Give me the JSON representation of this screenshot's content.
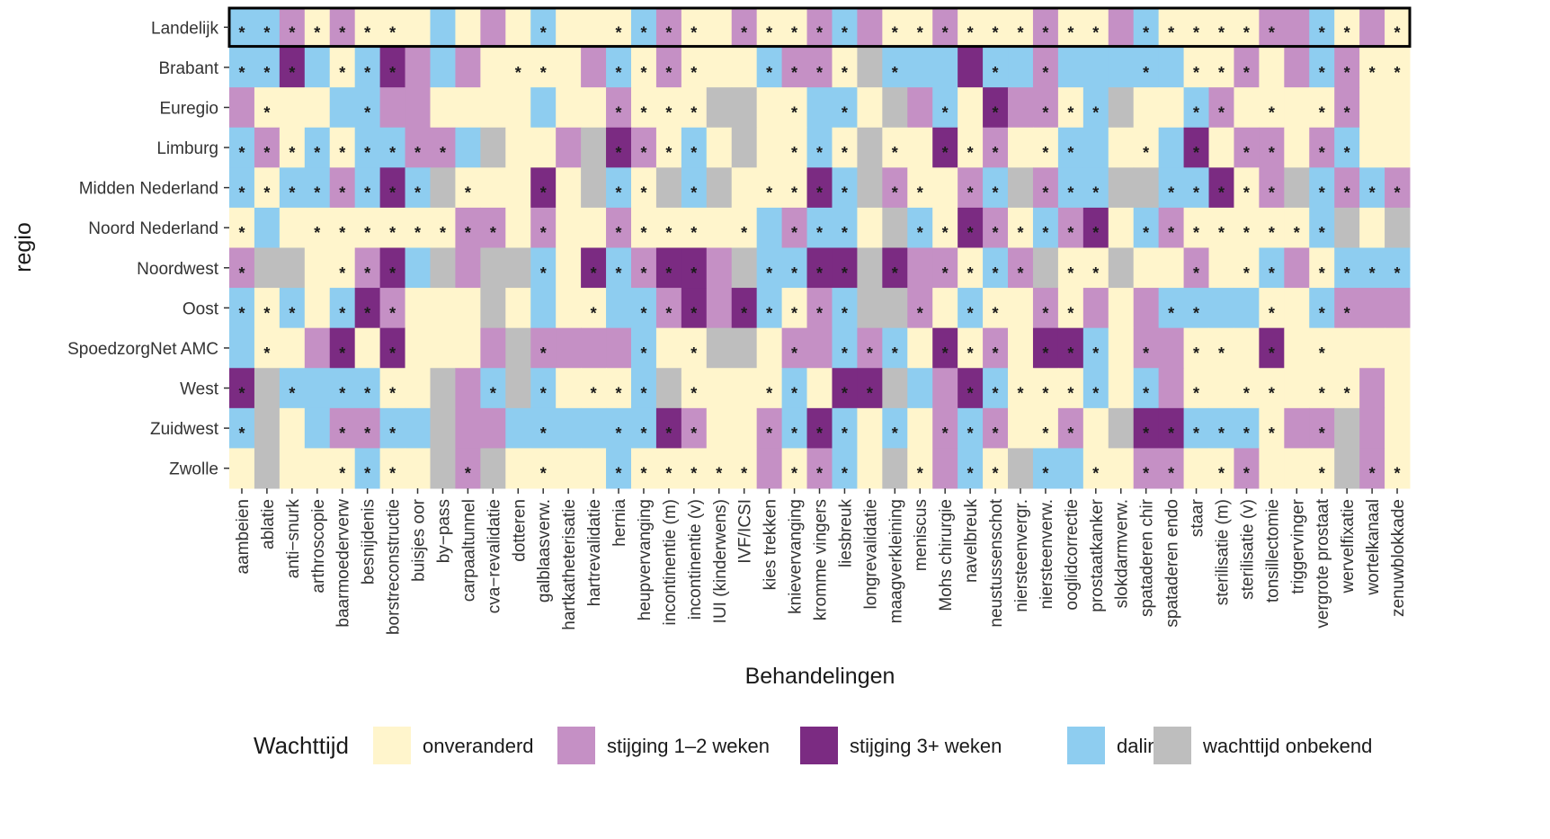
{
  "chart_data": {
    "type": "heatmap",
    "x_label": "Behandelingen",
    "y_label": "regio",
    "categories": [
      "aambeien",
      "ablatie",
      "anti−snurk",
      "arthroscopie",
      "baarmoederverw",
      "besnijdenis",
      "borstreconstructie",
      "buisjes oor",
      "by−pass",
      "carpaaltunnel",
      "cva−revalidatie",
      "dotteren",
      "galblaasverw.",
      "hartkatheterisatie",
      "hartrevalidatie",
      "hernia",
      "heupvervanging",
      "incontinentie (m)",
      "incontinentie (v)",
      "IUI (kinderwens)",
      "IVF/ICSI",
      "kies trekken",
      "knievervanging",
      "kromme vingers",
      "liesbreuk",
      "longrevalidatie",
      "maagverkleining",
      "meniscus",
      "Mohs chirurgie",
      "navelbreuk",
      "neustussenschot",
      "niersteenvergr.",
      "niersteenverw.",
      "ooglidcorrectie",
      "prostaatkanker",
      "slokdarmverw.",
      "spataderen chir",
      "spataderen endo",
      "staar",
      "sterilisatie (m)",
      "sterilisatie (v)",
      "tonsillectomie",
      "triggervinger",
      "vergrote prostaat",
      "wervelfixatie",
      "wortelkanaal",
      "zenuwblokkade"
    ],
    "rows": [
      "Landelijk",
      "Brabant",
      "Euregio",
      "Limburg",
      "Midden Nederland",
      "Noord Nederland",
      "Noordwest",
      "Oost",
      "SpoedzorgNet AMC",
      "West",
      "Zuidwest",
      "Zwolle"
    ],
    "highlight_row": 0,
    "legend": {
      "title": "Wachttijd",
      "items": [
        {
          "name": "onveranderd",
          "color": "#fff5cc"
        },
        {
          "name": "stijging 1–2 weken",
          "color": "#c590c5"
        },
        {
          "name": "stijging 3+ weken",
          "color": "#7b2b82"
        },
        {
          "name": "daling",
          "color": "#8ecdf0"
        },
        {
          "name": "wachttijd onbekend",
          "color": "#bebebe"
        }
      ]
    },
    "values": [
      [
        3,
        3,
        1,
        0,
        1,
        0,
        0,
        0,
        3,
        0,
        1,
        0,
        3,
        0,
        0,
        0,
        3,
        1,
        0,
        0,
        1,
        0,
        0,
        1,
        3,
        1,
        0,
        0,
        1,
        0,
        0,
        0,
        1,
        0,
        0,
        1,
        3,
        0,
        0,
        0,
        0,
        1,
        1,
        3,
        0,
        1,
        0
      ],
      [
        3,
        3,
        2,
        3,
        0,
        3,
        2,
        1,
        3,
        1,
        0,
        0,
        0,
        0,
        1,
        3,
        0,
        1,
        0,
        0,
        0,
        3,
        1,
        1,
        0,
        4,
        3,
        3,
        3,
        2,
        3,
        3,
        1,
        3,
        3,
        3,
        3,
        3,
        0,
        0,
        1,
        0,
        1,
        3,
        1,
        0,
        0
      ],
      [
        1,
        0,
        0,
        0,
        3,
        3,
        1,
        1,
        0,
        0,
        0,
        0,
        3,
        0,
        0,
        1,
        0,
        0,
        0,
        4,
        4,
        0,
        0,
        3,
        3,
        0,
        4,
        1,
        3,
        0,
        2,
        1,
        1,
        0,
        3,
        4,
        0,
        0,
        3,
        1,
        0,
        0,
        0,
        0,
        1,
        0,
        0
      ],
      [
        3,
        1,
        0,
        3,
        0,
        3,
        3,
        1,
        1,
        3,
        4,
        0,
        0,
        1,
        4,
        2,
        1,
        0,
        3,
        0,
        4,
        0,
        0,
        3,
        0,
        4,
        0,
        0,
        2,
        0,
        1,
        0,
        0,
        3,
        3,
        0,
        0,
        3,
        2,
        0,
        1,
        1,
        0,
        1,
        3,
        0,
        0
      ],
      [
        3,
        0,
        3,
        3,
        1,
        3,
        2,
        3,
        4,
        0,
        0,
        0,
        2,
        0,
        4,
        3,
        0,
        4,
        3,
        4,
        0,
        0,
        0,
        2,
        3,
        4,
        1,
        0,
        0,
        1,
        3,
        4,
        1,
        3,
        3,
        4,
        4,
        3,
        3,
        2,
        0,
        1,
        4,
        3,
        1,
        3,
        1
      ],
      [
        0,
        3,
        0,
        0,
        0,
        0,
        0,
        0,
        0,
        1,
        1,
        0,
        1,
        0,
        0,
        1,
        0,
        0,
        0,
        0,
        0,
        3,
        1,
        3,
        3,
        0,
        4,
        3,
        0,
        2,
        1,
        0,
        3,
        1,
        2,
        0,
        3,
        1,
        0,
        0,
        0,
        0,
        0,
        3,
        4,
        0,
        4
      ],
      [
        1,
        4,
        4,
        0,
        0,
        1,
        2,
        3,
        4,
        1,
        4,
        4,
        3,
        0,
        2,
        3,
        1,
        2,
        2,
        1,
        4,
        3,
        3,
        2,
        2,
        4,
        2,
        1,
        1,
        0,
        3,
        1,
        4,
        0,
        0,
        4,
        0,
        0,
        1,
        0,
        0,
        3,
        1,
        0,
        3,
        3,
        3
      ],
      [
        3,
        0,
        3,
        0,
        3,
        2,
        1,
        0,
        0,
        0,
        4,
        0,
        3,
        0,
        0,
        3,
        3,
        1,
        2,
        1,
        2,
        3,
        0,
        1,
        3,
        4,
        4,
        1,
        0,
        3,
        0,
        0,
        1,
        0,
        1,
        0,
        1,
        3,
        3,
        3,
        3,
        0,
        0,
        3,
        1,
        1,
        1
      ],
      [
        3,
        0,
        0,
        1,
        2,
        0,
        2,
        0,
        0,
        0,
        1,
        4,
        1,
        1,
        1,
        1,
        3,
        0,
        0,
        4,
        4,
        0,
        1,
        1,
        3,
        1,
        3,
        0,
        2,
        0,
        1,
        0,
        2,
        2,
        3,
        0,
        1,
        1,
        0,
        0,
        0,
        2,
        0,
        0,
        0,
        0,
        0
      ],
      [
        2,
        4,
        3,
        3,
        3,
        3,
        0,
        0,
        4,
        1,
        3,
        4,
        3,
        0,
        0,
        0,
        3,
        4,
        0,
        0,
        0,
        0,
        3,
        0,
        2,
        2,
        4,
        3,
        1,
        2,
        3,
        0,
        0,
        0,
        3,
        0,
        3,
        1,
        0,
        0,
        0,
        0,
        0,
        0,
        0,
        1,
        0
      ],
      [
        3,
        4,
        0,
        3,
        1,
        1,
        3,
        3,
        4,
        1,
        1,
        3,
        3,
        3,
        3,
        3,
        3,
        2,
        1,
        0,
        0,
        1,
        3,
        2,
        3,
        0,
        3,
        0,
        1,
        3,
        1,
        0,
        0,
        1,
        0,
        4,
        2,
        2,
        3,
        3,
        3,
        0,
        1,
        1,
        4,
        1,
        0
      ],
      [
        0,
        4,
        0,
        0,
        0,
        3,
        0,
        0,
        4,
        1,
        4,
        0,
        0,
        0,
        0,
        3,
        0,
        0,
        0,
        0,
        0,
        1,
        0,
        1,
        3,
        0,
        4,
        0,
        1,
        3,
        0,
        4,
        3,
        3,
        0,
        0,
        1,
        1,
        0,
        0,
        1,
        0,
        0,
        0,
        4,
        1,
        0
      ]
    ],
    "marker": "*",
    "significant": [
      [
        0,
        1,
        2,
        3,
        4,
        5,
        6,
        12,
        15,
        16,
        17,
        18,
        20,
        21,
        22,
        23,
        24,
        26,
        27,
        28,
        29,
        30,
        31,
        32,
        33,
        34,
        36,
        37,
        38,
        39,
        40,
        41,
        43,
        44,
        46
      ],
      [
        0,
        1,
        2,
        4,
        5,
        6,
        11,
        12,
        15,
        16,
        17,
        18,
        21,
        22,
        23,
        24,
        26,
        30,
        32,
        36,
        38,
        39,
        40,
        43,
        44,
        45,
        46
      ],
      [
        1,
        5,
        15,
        16,
        17,
        18,
        22,
        24,
        28,
        30,
        32,
        33,
        34,
        38,
        39,
        41,
        43,
        44
      ],
      [
        0,
        1,
        2,
        3,
        4,
        5,
        6,
        7,
        8,
        15,
        16,
        17,
        18,
        22,
        23,
        24,
        26,
        28,
        29,
        30,
        32,
        33,
        36,
        38,
        40,
        41,
        43,
        44
      ],
      [
        0,
        1,
        2,
        3,
        4,
        5,
        6,
        7,
        9,
        12,
        15,
        16,
        18,
        21,
        22,
        23,
        24,
        26,
        27,
        29,
        30,
        32,
        33,
        34,
        37,
        38,
        39,
        40,
        41,
        43,
        44,
        45,
        46
      ],
      [
        0,
        3,
        4,
        5,
        6,
        7,
        8,
        9,
        10,
        12,
        15,
        16,
        17,
        18,
        20,
        22,
        23,
        24,
        27,
        28,
        29,
        30,
        31,
        32,
        33,
        34,
        36,
        37,
        38,
        39,
        40,
        41,
        42,
        43
      ],
      [
        0,
        4,
        5,
        6,
        12,
        14,
        15,
        16,
        17,
        18,
        21,
        22,
        23,
        24,
        26,
        28,
        29,
        30,
        31,
        33,
        34,
        38,
        40,
        41,
        43,
        44,
        45,
        46
      ],
      [
        0,
        1,
        2,
        4,
        5,
        6,
        14,
        16,
        17,
        18,
        20,
        21,
        22,
        23,
        24,
        27,
        29,
        30,
        32,
        33,
        37,
        38,
        41,
        43,
        44
      ],
      [
        1,
        4,
        6,
        12,
        16,
        18,
        22,
        24,
        25,
        26,
        28,
        29,
        30,
        32,
        33,
        34,
        36,
        38,
        39,
        41,
        43
      ],
      [
        0,
        2,
        4,
        5,
        6,
        10,
        12,
        14,
        15,
        16,
        18,
        21,
        22,
        24,
        25,
        29,
        30,
        31,
        32,
        33,
        34,
        36,
        38,
        40,
        41,
        43,
        44
      ],
      [
        0,
        4,
        5,
        6,
        12,
        15,
        16,
        17,
        18,
        21,
        22,
        23,
        24,
        26,
        28,
        29,
        30,
        32,
        33,
        36,
        37,
        38,
        39,
        40,
        41,
        43
      ],
      [
        4,
        5,
        6,
        9,
        12,
        15,
        16,
        17,
        18,
        19,
        20,
        22,
        23,
        24,
        27,
        29,
        30,
        32,
        34,
        36,
        37,
        39,
        40,
        43,
        45,
        46
      ]
    ]
  }
}
